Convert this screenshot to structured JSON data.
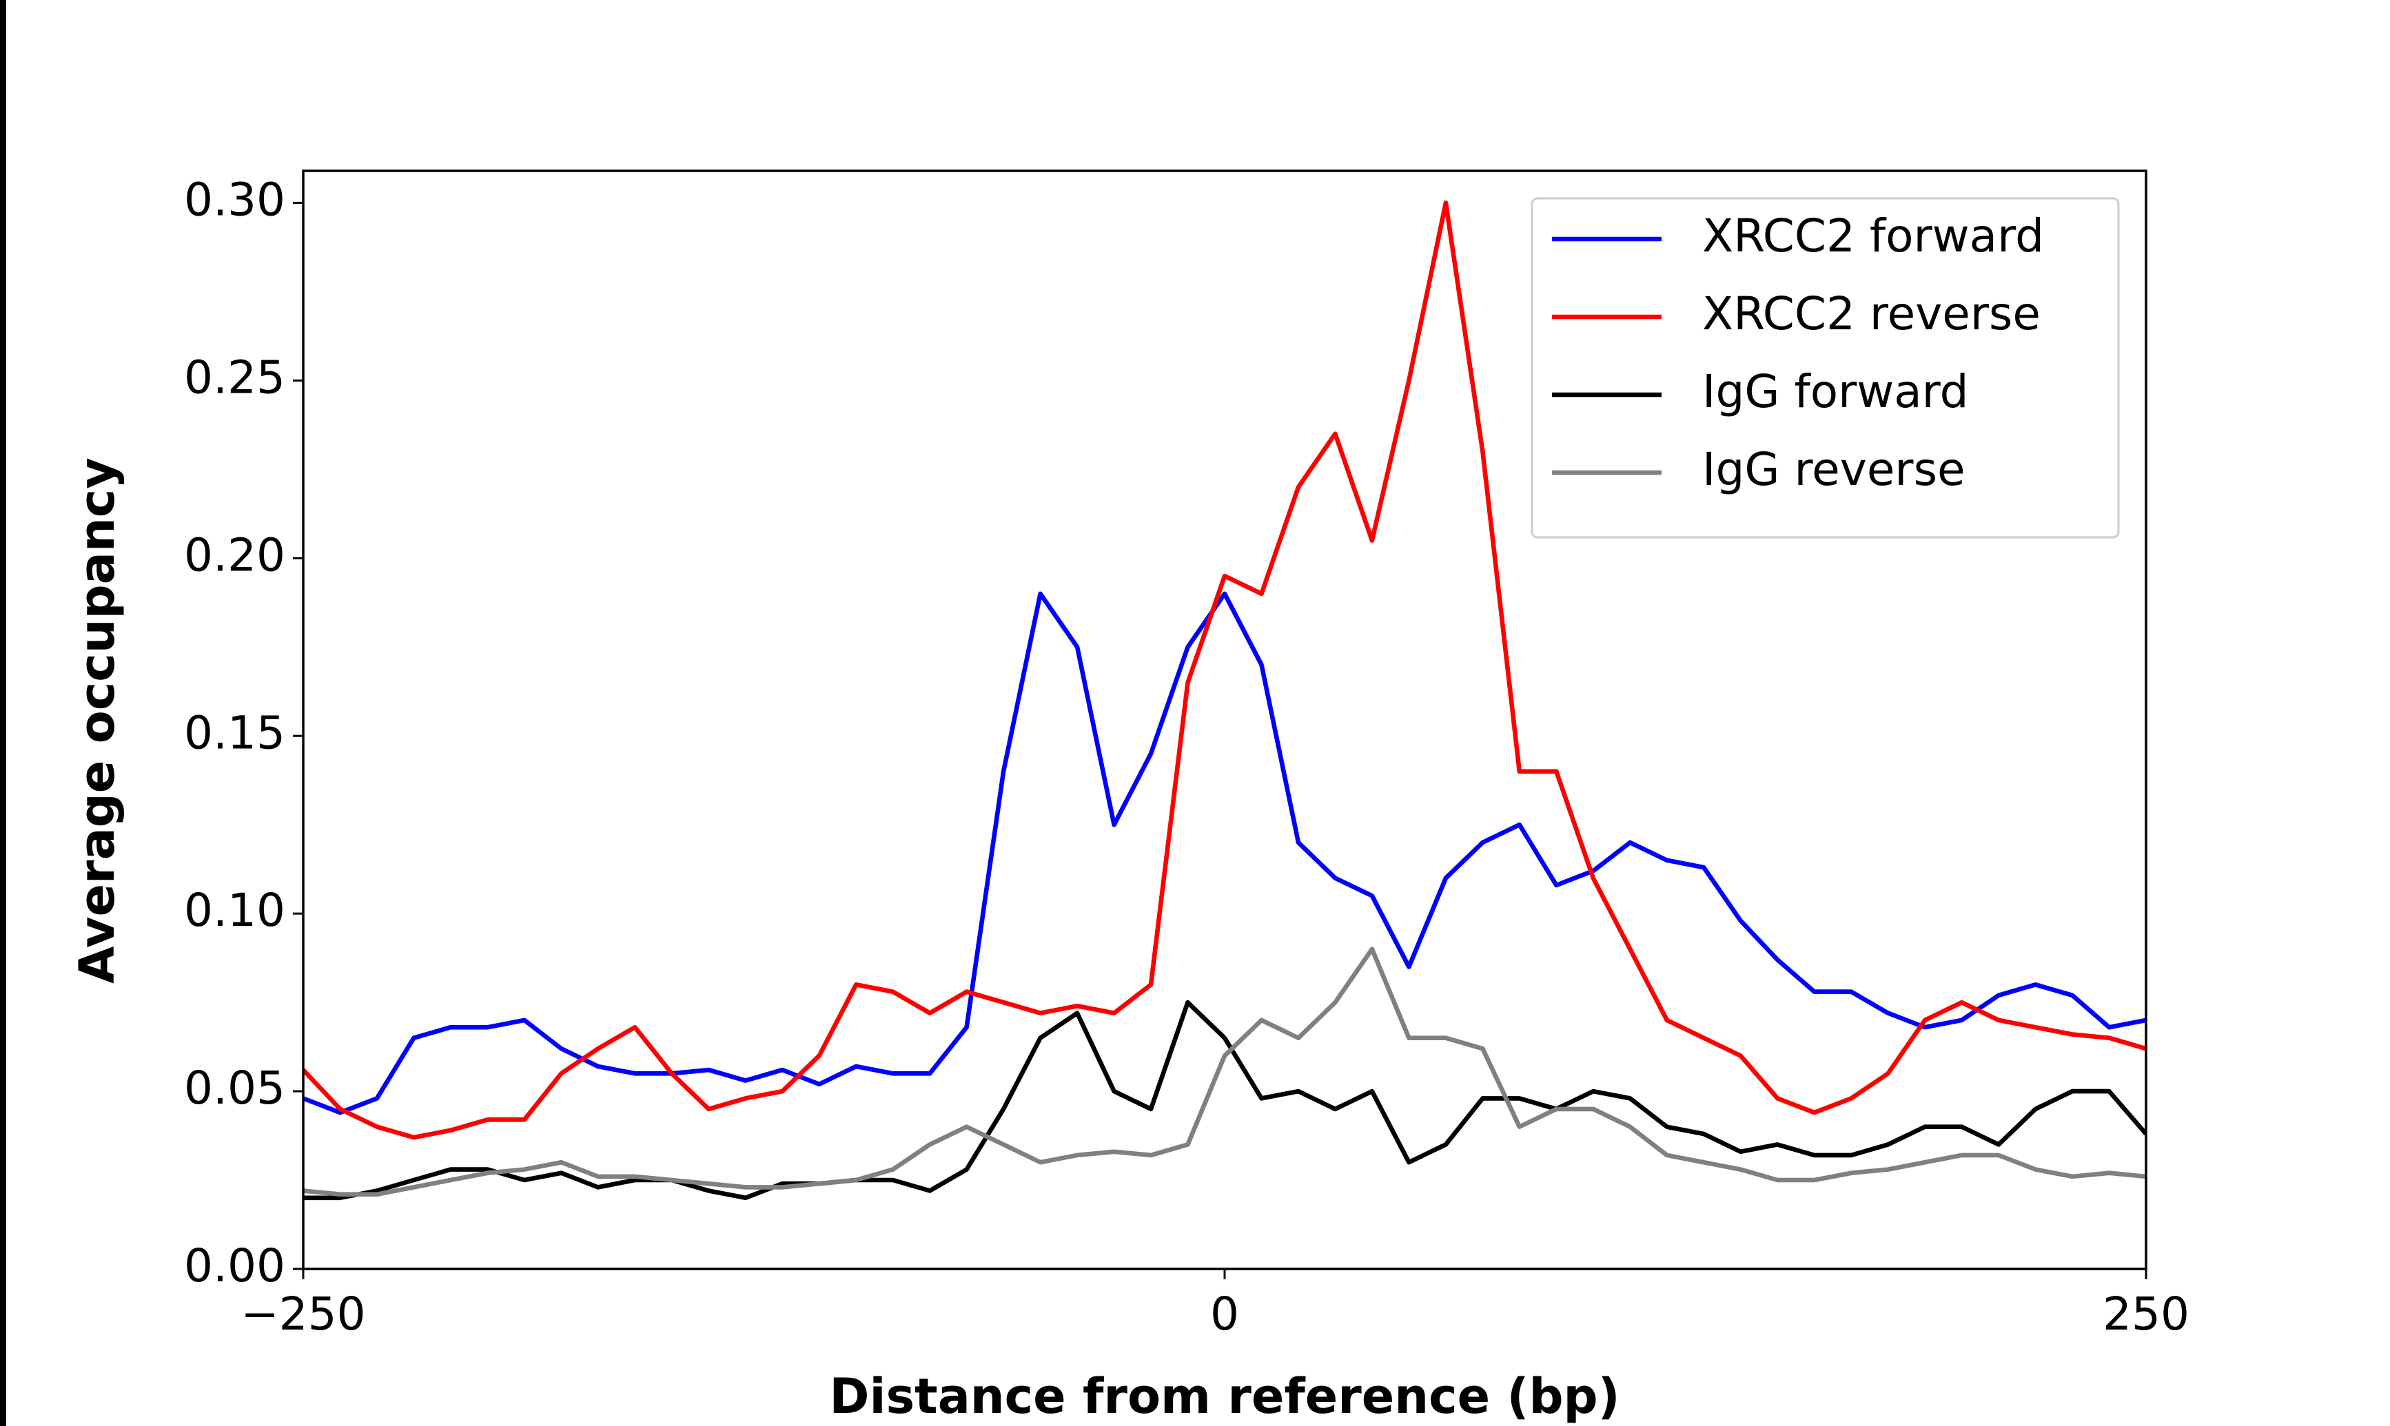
{
  "chart_data": {
    "type": "line",
    "x_label": "Distance from reference (bp)",
    "y_label": "Average occupancy",
    "x": [
      -250,
      -240,
      -230,
      -220,
      -210,
      -200,
      -190,
      -180,
      -170,
      -160,
      -150,
      -140,
      -130,
      -120,
      -110,
      -100,
      -90,
      -80,
      -70,
      -60,
      -50,
      -40,
      -30,
      -20,
      -10,
      0,
      10,
      20,
      30,
      40,
      50,
      60,
      70,
      80,
      90,
      100,
      110,
      120,
      130,
      140,
      150,
      160,
      170,
      180,
      190,
      200,
      210,
      220,
      230,
      240,
      250
    ],
    "series": [
      {
        "name": "XRCC2 forward",
        "color": "#0000ff",
        "values": [
          0.048,
          0.044,
          0.048,
          0.065,
          0.068,
          0.068,
          0.07,
          0.062,
          0.057,
          0.055,
          0.055,
          0.056,
          0.053,
          0.056,
          0.052,
          0.057,
          0.055,
          0.055,
          0.068,
          0.14,
          0.19,
          0.175,
          0.125,
          0.145,
          0.175,
          0.19,
          0.17,
          0.12,
          0.11,
          0.105,
          0.085,
          0.11,
          0.12,
          0.125,
          0.108,
          0.112,
          0.12,
          0.115,
          0.113,
          0.098,
          0.087,
          0.078,
          0.078,
          0.072,
          0.068,
          0.07,
          0.077,
          0.08,
          0.077,
          0.068,
          0.07
        ]
      },
      {
        "name": "XRCC2 reverse",
        "color": "#ff0000",
        "values": [
          0.056,
          0.045,
          0.04,
          0.037,
          0.039,
          0.042,
          0.042,
          0.055,
          0.062,
          0.068,
          0.055,
          0.045,
          0.048,
          0.05,
          0.06,
          0.08,
          0.078,
          0.072,
          0.078,
          0.075,
          0.072,
          0.074,
          0.072,
          0.08,
          0.165,
          0.195,
          0.19,
          0.22,
          0.235,
          0.205,
          0.25,
          0.3,
          0.23,
          0.14,
          0.14,
          0.11,
          0.09,
          0.07,
          0.065,
          0.06,
          0.048,
          0.044,
          0.048,
          0.055,
          0.07,
          0.075,
          0.07,
          0.068,
          0.066,
          0.065,
          0.062
        ]
      },
      {
        "name": "IgG forward",
        "color": "#000000",
        "values": [
          0.02,
          0.02,
          0.022,
          0.025,
          0.028,
          0.028,
          0.025,
          0.027,
          0.023,
          0.025,
          0.025,
          0.022,
          0.02,
          0.024,
          0.024,
          0.025,
          0.025,
          0.022,
          0.028,
          0.045,
          0.065,
          0.072,
          0.05,
          0.045,
          0.075,
          0.065,
          0.048,
          0.05,
          0.045,
          0.05,
          0.03,
          0.035,
          0.048,
          0.048,
          0.045,
          0.05,
          0.048,
          0.04,
          0.038,
          0.033,
          0.035,
          0.032,
          0.032,
          0.035,
          0.04,
          0.04,
          0.035,
          0.045,
          0.05,
          0.05,
          0.038
        ]
      },
      {
        "name": "IgG reverse",
        "color": "#808080",
        "values": [
          0.022,
          0.021,
          0.021,
          0.023,
          0.025,
          0.027,
          0.028,
          0.03,
          0.026,
          0.026,
          0.025,
          0.024,
          0.023,
          0.023,
          0.024,
          0.025,
          0.028,
          0.035,
          0.04,
          0.035,
          0.03,
          0.032,
          0.033,
          0.032,
          0.035,
          0.06,
          0.07,
          0.065,
          0.075,
          0.09,
          0.065,
          0.065,
          0.062,
          0.04,
          0.045,
          0.045,
          0.04,
          0.032,
          0.03,
          0.028,
          0.025,
          0.025,
          0.027,
          0.028,
          0.03,
          0.032,
          0.032,
          0.028,
          0.026,
          0.027,
          0.026
        ]
      }
    ],
    "xlim": [
      -250,
      250
    ],
    "ylim": [
      0,
      0.309
    ],
    "xticks": [
      {
        "value": -250,
        "label": "−250"
      },
      0,
      250
    ],
    "yticks": [
      {
        "value": 0,
        "label": "0.00"
      },
      {
        "value": 0.05,
        "label": "0.05"
      },
      {
        "value": 0.1,
        "label": "0.10"
      },
      {
        "value": 0.15,
        "label": "0.15"
      },
      {
        "value": 0.2,
        "label": "0.20"
      },
      {
        "value": 0.25,
        "label": "0.25"
      },
      {
        "value": 0.3,
        "label": "0.30"
      }
    ],
    "grid": false,
    "legend": "upper right"
  }
}
